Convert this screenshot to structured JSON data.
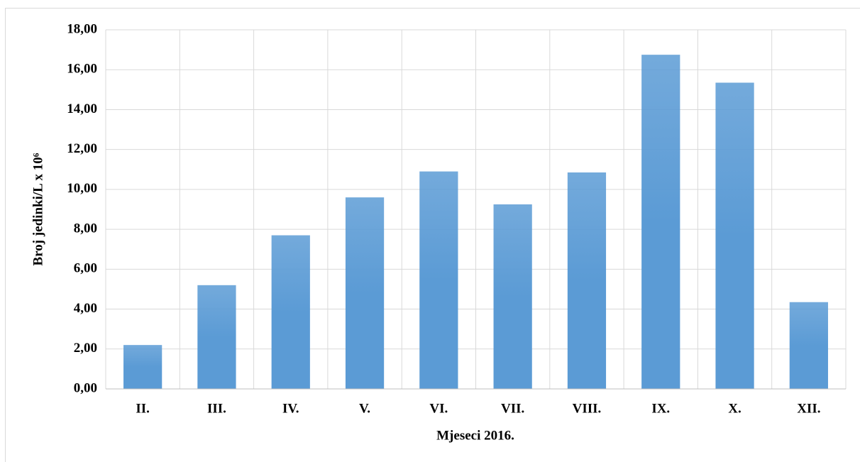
{
  "chart_data": {
    "type": "bar",
    "x_label": "Mjeseci 2016.",
    "y_label": "Broj jedinki/L x 10⁶",
    "categories": [
      "II.",
      "III.",
      "IV.",
      "V.",
      "VI.",
      "VII.",
      "VIII.",
      "IX.",
      "X.",
      "XII."
    ],
    "values": [
      2.2,
      5.2,
      7.7,
      9.6,
      10.9,
      9.25,
      10.85,
      16.75,
      15.35,
      4.35
    ],
    "color": "#5b9bd5",
    "ylim": [
      0,
      18
    ],
    "yticks": [
      {
        "value": 0,
        "label": "0,00"
      },
      {
        "value": 2,
        "label": "2,00"
      },
      {
        "value": 4,
        "label": "4,00"
      },
      {
        "value": 6,
        "label": "6,00"
      },
      {
        "value": 8,
        "label": "8,00"
      },
      {
        "value": 10,
        "label": "10,00"
      },
      {
        "value": 12,
        "label": "12,00"
      },
      {
        "value": 14,
        "label": "14,00"
      },
      {
        "value": 16,
        "label": "16,00"
      },
      {
        "value": 18,
        "label": "18,00"
      }
    ],
    "grid": true
  }
}
